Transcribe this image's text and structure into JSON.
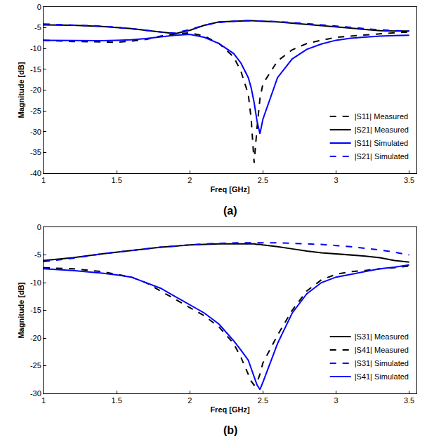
{
  "chart_data": [
    {
      "type": "line",
      "title": "(a)",
      "xlabel": "Freq [GHz]",
      "ylabel": "Magnitude [dB]",
      "x": [
        1.0,
        1.2,
        1.4,
        1.5,
        1.6,
        1.7,
        1.8,
        1.9,
        2.0,
        2.1,
        2.2,
        2.3,
        2.35,
        2.4,
        2.42,
        2.44,
        2.46,
        2.48,
        2.5,
        2.6,
        2.7,
        2.8,
        2.9,
        3.0,
        3.1,
        3.2,
        3.3,
        3.4,
        3.5
      ],
      "xlim": [
        1,
        3.55
      ],
      "xticks": [
        1,
        1.5,
        2,
        2.5,
        3,
        3.5
      ],
      "ylim": [
        -40,
        0
      ],
      "yticks": [
        -40,
        -35,
        -30,
        -25,
        -20,
        -15,
        -10,
        -5,
        0
      ],
      "grid": false,
      "legend": "lower right",
      "series": [
        {
          "name": "|S11| Measured",
          "color": "#000000",
          "line_style": "dash",
          "values": [
            -8.0,
            -8.3,
            -8.4,
            -8.5,
            -8.2,
            -7.8,
            -7.0,
            -6.5,
            -6.2,
            -7.0,
            -8.8,
            -12.0,
            -15.5,
            -21.0,
            -27.0,
            -37.5,
            -29.0,
            -22.0,
            -18.5,
            -13.0,
            -10.3,
            -8.8,
            -8.0,
            -7.3,
            -7.0,
            -6.7,
            -6.4,
            -6.2,
            -6.0
          ]
        },
        {
          "name": "|S21| Measured",
          "color": "#000000",
          "line_style": "solid",
          "values": [
            -4.3,
            -4.4,
            -4.7,
            -4.9,
            -5.2,
            -5.6,
            -6.0,
            -6.4,
            -5.6,
            -4.4,
            -3.6,
            -3.4,
            -3.3,
            -3.3,
            -3.3,
            -3.3,
            -3.3,
            -3.4,
            -3.4,
            -3.6,
            -3.9,
            -4.3,
            -4.6,
            -4.9,
            -5.2,
            -5.4,
            -5.7,
            -5.8,
            -5.8
          ]
        },
        {
          "name": "|S11| Simulated",
          "color": "#0000ff",
          "line_style": "solid",
          "values": [
            -8.0,
            -8.1,
            -8.1,
            -8.0,
            -7.9,
            -7.6,
            -7.2,
            -6.8,
            -6.6,
            -7.3,
            -8.8,
            -11.2,
            -13.5,
            -17.0,
            -19.5,
            -23.0,
            -27.5,
            -30.5,
            -27.0,
            -17.0,
            -12.5,
            -10.2,
            -8.9,
            -8.0,
            -7.5,
            -7.2,
            -7.0,
            -6.9,
            -6.8
          ]
        },
        {
          "name": "|S21| Simulated",
          "color": "#0000ff",
          "line_style": "dash",
          "values": [
            -4.1,
            -4.3,
            -4.6,
            -4.9,
            -5.2,
            -5.6,
            -6.0,
            -6.3,
            -5.4,
            -4.4,
            -3.7,
            -3.4,
            -3.3,
            -3.3,
            -3.3,
            -3.3,
            -3.3,
            -3.3,
            -3.4,
            -3.5,
            -3.7,
            -4.0,
            -4.3,
            -4.6,
            -5.0,
            -5.3,
            -5.5,
            -5.7,
            -5.8
          ]
        }
      ]
    },
    {
      "type": "line",
      "title": "(b)",
      "xlabel": "Freq [GHz]",
      "ylabel": "Magnitude [dB]",
      "x": [
        1.0,
        1.2,
        1.4,
        1.5,
        1.6,
        1.7,
        1.8,
        1.9,
        2.0,
        2.1,
        2.2,
        2.3,
        2.35,
        2.4,
        2.42,
        2.44,
        2.46,
        2.48,
        2.5,
        2.6,
        2.7,
        2.8,
        2.9,
        3.0,
        3.1,
        3.2,
        3.3,
        3.4,
        3.5
      ],
      "xlim": [
        1,
        3.55
      ],
      "xticks": [
        1,
        1.5,
        2,
        2.5,
        3,
        3.5
      ],
      "ylim": [
        -30,
        0
      ],
      "yticks": [
        -30,
        -25,
        -20,
        -15,
        -10,
        -5,
        0
      ],
      "grid": false,
      "legend": "lower right",
      "series": [
        {
          "name": "|S31| Measured",
          "color": "#000000",
          "line_style": "solid",
          "values": [
            -6.0,
            -5.5,
            -4.8,
            -4.5,
            -4.2,
            -3.9,
            -3.6,
            -3.4,
            -3.2,
            -3.1,
            -3.0,
            -3.0,
            -3.0,
            -3.0,
            -3.0,
            -3.0,
            -3.1,
            -3.1,
            -3.2,
            -3.5,
            -3.9,
            -4.3,
            -4.6,
            -4.8,
            -5.0,
            -5.2,
            -5.5,
            -6.0,
            -6.3
          ]
        },
        {
          "name": "|S41| Measured",
          "color": "#000000",
          "line_style": "dash",
          "values": [
            -7.3,
            -7.5,
            -8.0,
            -8.5,
            -9.0,
            -10.0,
            -11.5,
            -13.0,
            -14.5,
            -16.0,
            -18.0,
            -21.0,
            -23.5,
            -26.5,
            -27.8,
            -28.5,
            -28.0,
            -26.5,
            -24.5,
            -19.5,
            -15.0,
            -11.5,
            -9.5,
            -8.5,
            -8.0,
            -7.8,
            -7.5,
            -7.3,
            -7.0
          ]
        },
        {
          "name": "|S31| Simulated",
          "color": "#0000ff",
          "line_style": "dash",
          "values": [
            -6.2,
            -5.6,
            -4.8,
            -4.5,
            -4.2,
            -3.9,
            -3.6,
            -3.4,
            -3.2,
            -3.0,
            -2.9,
            -2.8,
            -2.8,
            -2.8,
            -2.8,
            -2.8,
            -2.8,
            -2.8,
            -2.8,
            -2.8,
            -2.9,
            -3.0,
            -3.1,
            -3.3,
            -3.5,
            -3.8,
            -4.1,
            -4.5,
            -5.0
          ]
        },
        {
          "name": "|S41| Simulated",
          "color": "#0000ff",
          "line_style": "solid",
          "values": [
            -7.5,
            -7.8,
            -8.3,
            -8.6,
            -9.0,
            -10.0,
            -11.0,
            -12.5,
            -14.0,
            -15.5,
            -17.5,
            -20.5,
            -22.2,
            -24.0,
            -25.5,
            -27.0,
            -28.5,
            -29.3,
            -28.0,
            -21.0,
            -15.5,
            -12.0,
            -10.0,
            -9.0,
            -8.5,
            -8.0,
            -7.5,
            -7.2,
            -6.8
          ]
        }
      ]
    }
  ]
}
